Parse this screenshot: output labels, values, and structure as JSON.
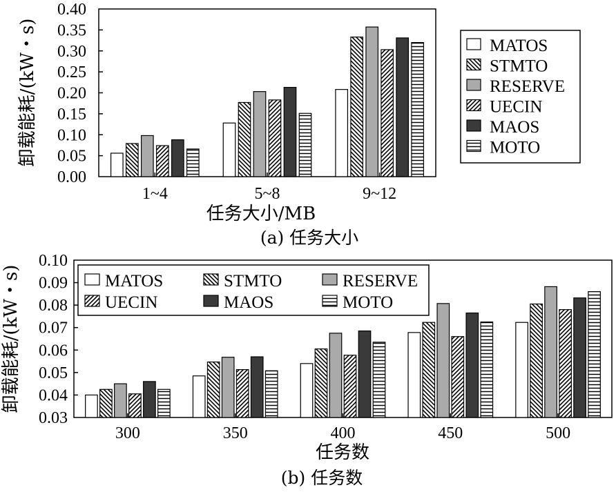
{
  "series_styles": [
    {
      "name": "MATOS",
      "fill": "#ffffff",
      "pattern": "none"
    },
    {
      "name": "STMTO",
      "fill": "#ffffff",
      "pattern": "backslash"
    },
    {
      "name": "RESERVE",
      "fill": "#aaaaaa",
      "pattern": "none"
    },
    {
      "name": "UECIN",
      "fill": "#ffffff",
      "pattern": "slash"
    },
    {
      "name": "MAOS",
      "fill": "#3a3a3a",
      "pattern": "none"
    },
    {
      "name": "MOTO",
      "fill": "#ffffff",
      "pattern": "horizontal"
    }
  ],
  "chart_data": [
    {
      "type": "bar",
      "caption": "(a) 任务大小",
      "xlabel": "任务大小/MB",
      "ylabel": "卸载能耗/(kW・s)",
      "ylim": [
        0,
        0.4
      ],
      "yticks": [
        "0.00",
        "0.05",
        "0.10",
        "0.15",
        "0.20",
        "0.25",
        "0.30",
        "0.35",
        "0.40"
      ],
      "categories": [
        "1~4",
        "5~8",
        "9~12"
      ],
      "legend_position": "right",
      "series": [
        {
          "name": "MATOS",
          "values": [
            0.056,
            0.128,
            0.208
          ]
        },
        {
          "name": "STMTO",
          "values": [
            0.079,
            0.177,
            0.333
          ]
        },
        {
          "name": "RESERVE",
          "values": [
            0.098,
            0.203,
            0.357
          ]
        },
        {
          "name": "UECIN",
          "values": [
            0.074,
            0.183,
            0.303
          ]
        },
        {
          "name": "MAOS",
          "values": [
            0.088,
            0.213,
            0.331
          ]
        },
        {
          "name": "MOTO",
          "values": [
            0.066,
            0.151,
            0.32
          ]
        }
      ]
    },
    {
      "type": "bar",
      "caption": "(b) 任务数",
      "xlabel": "任务数",
      "ylabel": "卸载能耗/(kW・s)",
      "ylim": [
        0.03,
        0.1
      ],
      "yticks": [
        "0.03",
        "0.04",
        "0.05",
        "0.06",
        "0.07",
        "0.08",
        "0.09",
        "0.10"
      ],
      "categories": [
        "300",
        "350",
        "400",
        "450",
        "500"
      ],
      "legend_position": "top-left",
      "series": [
        {
          "name": "MATOS",
          "values": [
            0.04,
            0.0485,
            0.054,
            0.0678,
            0.0723
          ]
        },
        {
          "name": "STMTO",
          "values": [
            0.0425,
            0.0547,
            0.0605,
            0.0723,
            0.0805
          ]
        },
        {
          "name": "RESERVE",
          "values": [
            0.045,
            0.0568,
            0.0675,
            0.0807,
            0.0882
          ]
        },
        {
          "name": "UECIN",
          "values": [
            0.0405,
            0.0513,
            0.0577,
            0.066,
            0.078
          ]
        },
        {
          "name": "MAOS",
          "values": [
            0.046,
            0.057,
            0.0685,
            0.0765,
            0.0832
          ]
        },
        {
          "name": "MOTO",
          "values": [
            0.0425,
            0.0508,
            0.0635,
            0.0725,
            0.086
          ]
        }
      ]
    }
  ]
}
